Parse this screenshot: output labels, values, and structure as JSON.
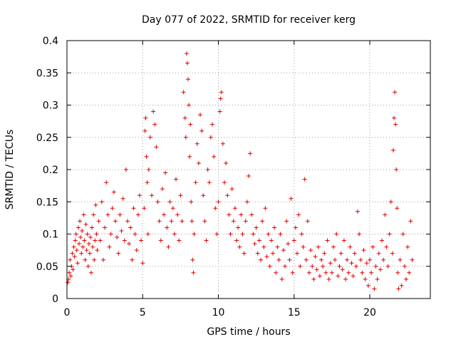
{
  "chart_data": {
    "type": "scatter",
    "title": "Day 077 of 2022, SRMTID for receiver kerg",
    "xlabel": "GPS time / hours",
    "ylabel": "SRMTID / TECUs",
    "xlim": [
      0,
      24
    ],
    "ylim": [
      0,
      0.4
    ],
    "x_ticks": [
      0,
      5,
      10,
      15,
      20
    ],
    "x_tick_labels": [
      "0",
      "5",
      "10",
      "15",
      "20"
    ],
    "y_ticks": [
      0,
      0.05,
      0.1,
      0.15,
      0.2,
      0.25,
      0.3,
      0.35,
      0.4
    ],
    "y_tick_labels": [
      "0",
      "0.05",
      "0.1",
      "0.15",
      "0.2",
      "0.25",
      "0.3",
      "0.35",
      "0.4"
    ],
    "grid": true,
    "marker": "+",
    "color": "#e00000",
    "series": [
      {
        "name": "SRMTID",
        "points": [
          [
            0.05,
            0.025
          ],
          [
            0.1,
            0.03
          ],
          [
            0.15,
            0.04
          ],
          [
            0.2,
            0.06
          ],
          [
            0.25,
            0.035
          ],
          [
            0.3,
            0.05
          ],
          [
            0.35,
            0.07
          ],
          [
            0.4,
            0.045
          ],
          [
            0.45,
            0.08
          ],
          [
            0.5,
            0.065
          ],
          [
            0.55,
            0.09
          ],
          [
            0.6,
            0.1
          ],
          [
            0.65,
            0.075
          ],
          [
            0.7,
            0.055
          ],
          [
            0.75,
            0.11
          ],
          [
            0.8,
            0.085
          ],
          [
            0.85,
            0.12
          ],
          [
            0.9,
            0.095
          ],
          [
            0.95,
            0.07
          ],
          [
            1.0,
            0.105
          ],
          [
            1.05,
            0.08
          ],
          [
            1.1,
            0.13
          ],
          [
            1.15,
            0.09
          ],
          [
            1.2,
            0.06
          ],
          [
            1.25,
            0.115
          ],
          [
            1.3,
            0.075
          ],
          [
            1.35,
            0.1
          ],
          [
            1.4,
            0.05
          ],
          [
            1.45,
            0.085
          ],
          [
            1.5,
            0.07
          ],
          [
            1.55,
            0.095
          ],
          [
            1.6,
            0.04
          ],
          [
            1.65,
            0.11
          ],
          [
            1.7,
            0.08
          ],
          [
            1.75,
            0.13
          ],
          [
            1.8,
            0.06
          ],
          [
            1.85,
            0.09
          ],
          [
            1.9,
            0.145
          ],
          [
            1.95,
            0.1
          ],
          [
            2.0,
            0.075
          ],
          [
            2.1,
            0.12
          ],
          [
            2.2,
            0.09
          ],
          [
            2.3,
            0.15
          ],
          [
            2.4,
            0.06
          ],
          [
            2.5,
            0.11
          ],
          [
            2.6,
            0.18
          ],
          [
            2.7,
            0.13
          ],
          [
            2.8,
            0.08
          ],
          [
            2.9,
            0.1
          ],
          [
            3.0,
            0.14
          ],
          [
            3.1,
            0.165
          ],
          [
            3.2,
            0.12
          ],
          [
            3.3,
            0.095
          ],
          [
            3.4,
            0.07
          ],
          [
            3.5,
            0.13
          ],
          [
            3.6,
            0.105
          ],
          [
            3.7,
            0.155
          ],
          [
            3.8,
            0.09
          ],
          [
            3.9,
            0.2
          ],
          [
            4.0,
            0.12
          ],
          [
            4.1,
            0.085
          ],
          [
            4.2,
            0.11
          ],
          [
            4.3,
            0.06
          ],
          [
            4.4,
            0.14
          ],
          [
            4.5,
            0.1
          ],
          [
            4.6,
            0.075
          ],
          [
            4.7,
            0.13
          ],
          [
            4.8,
            0.16
          ],
          [
            4.9,
            0.09
          ],
          [
            5.0,
            0.055
          ],
          [
            5.1,
            0.14
          ],
          [
            5.15,
            0.26
          ],
          [
            5.2,
            0.28
          ],
          [
            5.25,
            0.22
          ],
          [
            5.3,
            0.18
          ],
          [
            5.35,
            0.1
          ],
          [
            5.4,
            0.2
          ],
          [
            5.5,
            0.25
          ],
          [
            5.6,
            0.16
          ],
          [
            5.7,
            0.29
          ],
          [
            5.8,
            0.27
          ],
          [
            5.9,
            0.235
          ],
          [
            6.0,
            0.15
          ],
          [
            6.1,
            0.12
          ],
          [
            6.2,
            0.09
          ],
          [
            6.3,
            0.17
          ],
          [
            6.4,
            0.13
          ],
          [
            6.5,
            0.195
          ],
          [
            6.6,
            0.11
          ],
          [
            6.7,
            0.08
          ],
          [
            6.8,
            0.15
          ],
          [
            6.9,
            0.12
          ],
          [
            7.0,
            0.14
          ],
          [
            7.1,
            0.1
          ],
          [
            7.2,
            0.185
          ],
          [
            7.3,
            0.13
          ],
          [
            7.4,
            0.09
          ],
          [
            7.5,
            0.16
          ],
          [
            7.6,
            0.12
          ],
          [
            7.7,
            0.32
          ],
          [
            7.8,
            0.28
          ],
          [
            7.85,
            0.25
          ],
          [
            7.9,
            0.38
          ],
          [
            7.95,
            0.365
          ],
          [
            8.0,
            0.34
          ],
          [
            8.05,
            0.3
          ],
          [
            8.1,
            0.22
          ],
          [
            8.15,
            0.27
          ],
          [
            8.2,
            0.15
          ],
          [
            8.25,
            0.12
          ],
          [
            8.3,
            0.06
          ],
          [
            8.35,
            0.04
          ],
          [
            8.4,
            0.1
          ],
          [
            8.5,
            0.18
          ],
          [
            8.6,
            0.24
          ],
          [
            8.7,
            0.21
          ],
          [
            8.8,
            0.285
          ],
          [
            8.9,
            0.26
          ],
          [
            9.0,
            0.16
          ],
          [
            9.1,
            0.12
          ],
          [
            9.2,
            0.09
          ],
          [
            9.3,
            0.2
          ],
          [
            9.4,
            0.18
          ],
          [
            9.5,
            0.25
          ],
          [
            9.6,
            0.27
          ],
          [
            9.7,
            0.22
          ],
          [
            9.8,
            0.14
          ],
          [
            9.9,
            0.1
          ],
          [
            10.0,
            0.15
          ],
          [
            10.1,
            0.29
          ],
          [
            10.15,
            0.31
          ],
          [
            10.2,
            0.32
          ],
          [
            10.3,
            0.24
          ],
          [
            10.4,
            0.18
          ],
          [
            10.5,
            0.21
          ],
          [
            10.6,
            0.16
          ],
          [
            10.7,
            0.13
          ],
          [
            10.8,
            0.1
          ],
          [
            10.9,
            0.17
          ],
          [
            11.0,
            0.12
          ],
          [
            11.1,
            0.14
          ],
          [
            11.2,
            0.09
          ],
          [
            11.3,
            0.11
          ],
          [
            11.4,
            0.08
          ],
          [
            11.5,
            0.13
          ],
          [
            11.6,
            0.1
          ],
          [
            11.7,
            0.07
          ],
          [
            11.8,
            0.12
          ],
          [
            11.9,
            0.15
          ],
          [
            12.0,
            0.19
          ],
          [
            12.1,
            0.225
          ],
          [
            12.2,
            0.13
          ],
          [
            12.3,
            0.1
          ],
          [
            12.4,
            0.085
          ],
          [
            12.5,
            0.11
          ],
          [
            12.6,
            0.07
          ],
          [
            12.7,
            0.09
          ],
          [
            12.8,
            0.06
          ],
          [
            12.9,
            0.12
          ],
          [
            13.0,
            0.08
          ],
          [
            13.1,
            0.14
          ],
          [
            13.2,
            0.065
          ],
          [
            13.3,
            0.1
          ],
          [
            13.4,
            0.05
          ],
          [
            13.5,
            0.09
          ],
          [
            13.6,
            0.07
          ],
          [
            13.7,
            0.11
          ],
          [
            13.8,
            0.04
          ],
          [
            13.9,
            0.08
          ],
          [
            14.0,
            0.06
          ],
          [
            14.1,
            0.1
          ],
          [
            14.2,
            0.03
          ],
          [
            14.3,
            0.075
          ],
          [
            14.4,
            0.05
          ],
          [
            14.5,
            0.12
          ],
          [
            14.6,
            0.085
          ],
          [
            14.7,
            0.06
          ],
          [
            14.8,
            0.155
          ],
          [
            14.9,
            0.04
          ],
          [
            15.0,
            0.09
          ],
          [
            15.1,
            0.11
          ],
          [
            15.2,
            0.07
          ],
          [
            15.3,
            0.13
          ],
          [
            15.4,
            0.05
          ],
          [
            15.5,
            0.1
          ],
          [
            15.6,
            0.08
          ],
          [
            15.7,
            0.185
          ],
          [
            15.8,
            0.06
          ],
          [
            15.9,
            0.12
          ],
          [
            16.0,
            0.04
          ],
          [
            16.1,
            0.075
          ],
          [
            16.2,
            0.05
          ],
          [
            16.3,
            0.03
          ],
          [
            16.4,
            0.065
          ],
          [
            16.5,
            0.045
          ],
          [
            16.6,
            0.08
          ],
          [
            16.7,
            0.035
          ],
          [
            16.8,
            0.06
          ],
          [
            16.9,
            0.05
          ],
          [
            17.0,
            0.07
          ],
          [
            17.1,
            0.04
          ],
          [
            17.2,
            0.09
          ],
          [
            17.3,
            0.03
          ],
          [
            17.4,
            0.055
          ],
          [
            17.5,
            0.04
          ],
          [
            17.6,
            0.08
          ],
          [
            17.7,
            0.06
          ],
          [
            17.8,
            0.1
          ],
          [
            17.9,
            0.035
          ],
          [
            18.0,
            0.05
          ],
          [
            18.1,
            0.07
          ],
          [
            18.2,
            0.045
          ],
          [
            18.3,
            0.09
          ],
          [
            18.4,
            0.03
          ],
          [
            18.5,
            0.06
          ],
          [
            18.6,
            0.04
          ],
          [
            18.7,
            0.08
          ],
          [
            18.8,
            0.055
          ],
          [
            18.9,
            0.035
          ],
          [
            19.0,
            0.07
          ],
          [
            19.1,
            0.05
          ],
          [
            19.2,
            0.135
          ],
          [
            19.3,
            0.1
          ],
          [
            19.4,
            0.06
          ],
          [
            19.5,
            0.04
          ],
          [
            19.6,
            0.075
          ],
          [
            19.7,
            0.03
          ],
          [
            19.8,
            0.055
          ],
          [
            19.9,
            0.02
          ],
          [
            20.0,
            0.06
          ],
          [
            20.1,
            0.04
          ],
          [
            20.2,
            0.08
          ],
          [
            20.3,
            0.015
          ],
          [
            20.4,
            0.05
          ],
          [
            20.5,
            0.03
          ],
          [
            20.6,
            0.07
          ],
          [
            20.7,
            0.045
          ],
          [
            20.8,
            0.09
          ],
          [
            20.9,
            0.06
          ],
          [
            21.0,
            0.13
          ],
          [
            21.1,
            0.08
          ],
          [
            21.2,
            0.05
          ],
          [
            21.3,
            0.1
          ],
          [
            21.4,
            0.15
          ],
          [
            21.5,
            0.07
          ],
          [
            21.55,
            0.23
          ],
          [
            21.6,
            0.28
          ],
          [
            21.65,
            0.32
          ],
          [
            21.7,
            0.27
          ],
          [
            21.75,
            0.2
          ],
          [
            21.8,
            0.14
          ],
          [
            21.85,
            0.04
          ],
          [
            21.9,
            0.015
          ],
          [
            22.0,
            0.06
          ],
          [
            22.1,
            0.02
          ],
          [
            22.2,
            0.1
          ],
          [
            22.3,
            0.05
          ],
          [
            22.4,
            0.03
          ],
          [
            22.5,
            0.08
          ],
          [
            22.6,
            0.04
          ],
          [
            22.7,
            0.12
          ],
          [
            22.8,
            0.06
          ]
        ]
      }
    ]
  }
}
